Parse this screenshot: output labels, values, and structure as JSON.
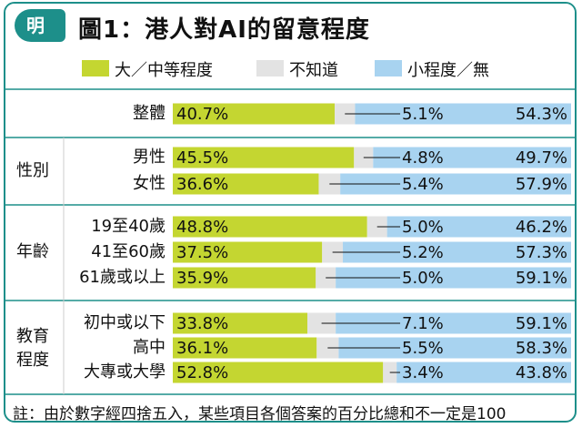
{
  "header": {
    "logo_char": "明",
    "title": "圖1：港人對AI的留意程度"
  },
  "colors": {
    "great": "#c4d631",
    "unknown": "#e3e3e3",
    "small": "#a8d3f0",
    "border": "#1d8f8a"
  },
  "legend": [
    {
      "label": "大／中等程度",
      "color": "#c4d631"
    },
    {
      "label": "不知道",
      "color": "#e3e3e3"
    },
    {
      "label": "小程度／無",
      "color": "#a8d3f0"
    }
  ],
  "chart_data": {
    "type": "bar",
    "stacked": true,
    "orientation": "horizontal",
    "title": "圖1：港人對AI的留意程度",
    "series": [
      {
        "name": "大／中等程度",
        "values": [
          40.7,
          45.5,
          36.6,
          48.8,
          37.5,
          35.9,
          33.8,
          36.1,
          52.8
        ]
      },
      {
        "name": "不知道",
        "values": [
          5.1,
          4.8,
          5.4,
          5.0,
          5.2,
          5.0,
          7.1,
          5.5,
          3.4
        ]
      },
      {
        "name": "小程度／無",
        "values": [
          54.3,
          49.7,
          57.9,
          46.2,
          57.3,
          59.1,
          59.1,
          58.3,
          43.8
        ]
      }
    ],
    "value_labels": [
      [
        "40.7%",
        "5.1%",
        "54.3%"
      ],
      [
        "45.5%",
        "4.8%",
        "49.7%"
      ],
      [
        "36.6%",
        "5.4%",
        "57.9%"
      ],
      [
        "48.8%",
        "5.0%",
        "46.2%"
      ],
      [
        "37.5%",
        "5.2%",
        "57.3%"
      ],
      [
        "35.9%",
        "5.0%",
        "59.1%"
      ],
      [
        "33.8%",
        "7.1%",
        "59.1%"
      ],
      [
        "36.1%",
        "5.5%",
        "58.3%"
      ],
      [
        "52.8%",
        "3.4%",
        "43.8%"
      ]
    ],
    "groups": [
      {
        "name": "",
        "rows": [
          "整體"
        ]
      },
      {
        "name": "性別",
        "rows": [
          "男性",
          "女性"
        ]
      },
      {
        "name": "年齡",
        "rows": [
          "19至40歲",
          "41至60歲",
          "61歲或以上"
        ]
      },
      {
        "name": "教育程度",
        "rows": [
          "初中或以下",
          "高中",
          "大專或大學"
        ]
      }
    ]
  },
  "footnote": "註：由於數字經四捨五入，某些項目各個答案的百分比總和不一定是100"
}
